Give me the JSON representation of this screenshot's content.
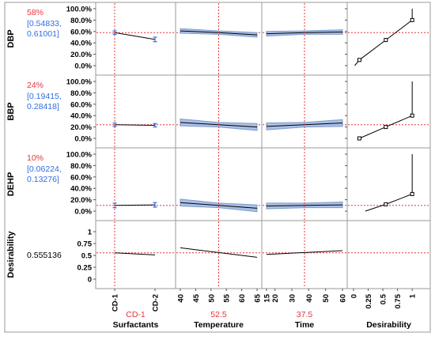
{
  "chart_data": {
    "type": "line",
    "title": "",
    "colors": {
      "response_label": "#000000",
      "current_value": "#e8343a",
      "interval": "#2f6fe0",
      "reference_line": "#e8343a",
      "trace": "#000000",
      "band": "#a9bfe6",
      "band_edge": "#7f9ccc",
      "grid": "#9a9a9a"
    },
    "factors": [
      {
        "name": "Surfactants",
        "current": "CD-1",
        "kind": "categorical",
        "categories": [
          "CD-1",
          "CD-2"
        ],
        "current_value": "CD-1"
      },
      {
        "name": "Temperature",
        "current": "52.5",
        "kind": "continuous",
        "range": [
          40,
          65
        ],
        "ticks": [
          "40",
          "45",
          "50",
          "55",
          "60",
          "65"
        ],
        "current_value": 52.5
      },
      {
        "name": "Time",
        "current": "37.5",
        "kind": "continuous",
        "range": [
          15,
          60
        ],
        "ticks": [
          "15",
          "20",
          "30",
          "40",
          "50",
          "60"
        ],
        "current_value": 37.5
      },
      {
        "name": "Desirability",
        "current": "",
        "kind": "continuous",
        "range": [
          0,
          1.2
        ],
        "ticks": [
          "0",
          "0.25",
          "0.5",
          "0.75",
          "1"
        ],
        "current_value": null
      }
    ],
    "responses": [
      {
        "name": "DBP",
        "value": "58%",
        "ci_line1": "[0.54833,",
        "ci_line2": "0.61001]",
        "y_range": [
          0,
          1
        ],
        "y_ticks": [
          "0.0%",
          "20.0%",
          "40.0%",
          "60.0%",
          "80.0%",
          "100.0%"
        ],
        "current": 0.58,
        "surfactants": [
          {
            "x": "CD-1",
            "y": 0.58,
            "lo": 0.55,
            "hi": 0.61
          },
          {
            "x": "CD-2",
            "y": 0.46,
            "lo": 0.42,
            "hi": 0.5
          }
        ],
        "temperature": [
          {
            "x": 40,
            "y": 0.61,
            "band": 0.04
          },
          {
            "x": 52.5,
            "y": 0.58,
            "band": 0.03
          },
          {
            "x": 65,
            "y": 0.54,
            "band": 0.04
          }
        ],
        "time": [
          {
            "x": 15,
            "y": 0.56,
            "band": 0.04
          },
          {
            "x": 37.5,
            "y": 0.58,
            "band": 0.03
          },
          {
            "x": 60,
            "y": 0.59,
            "band": 0.04
          }
        ],
        "desirability_fn": [
          {
            "x": 0.02,
            "y": 0.0
          },
          {
            "x": 0.1,
            "y": 0.1
          },
          {
            "x": 0.55,
            "y": 0.45
          },
          {
            "x": 1.0,
            "y": 0.8
          },
          {
            "x": 1.0,
            "y": 1.0
          }
        ],
        "desirability_marks": [
          {
            "x": 0.1,
            "y": 0.1
          },
          {
            "x": 0.55,
            "y": 0.45
          },
          {
            "x": 1.0,
            "y": 0.8
          }
        ]
      },
      {
        "name": "BBP",
        "value": "24%",
        "ci_line1": "[0.19415,",
        "ci_line2": "0.28418]",
        "y_range": [
          0,
          1
        ],
        "y_ticks": [
          "0.0%",
          "20.0%",
          "40.0%",
          "60.0%",
          "80.0%",
          "100.0%"
        ],
        "current": 0.24,
        "surfactants": [
          {
            "x": "CD-1",
            "y": 0.24,
            "lo": 0.21,
            "hi": 0.27
          },
          {
            "x": "CD-2",
            "y": 0.23,
            "lo": 0.2,
            "hi": 0.26
          }
        ],
        "temperature": [
          {
            "x": 40,
            "y": 0.28,
            "band": 0.06
          },
          {
            "x": 52.5,
            "y": 0.24,
            "band": 0.04
          },
          {
            "x": 65,
            "y": 0.2,
            "band": 0.06
          }
        ],
        "time": [
          {
            "x": 15,
            "y": 0.21,
            "band": 0.06
          },
          {
            "x": 37.5,
            "y": 0.24,
            "band": 0.04
          },
          {
            "x": 60,
            "y": 0.27,
            "band": 0.06
          }
        ],
        "desirability_fn": [
          {
            "x": 0.1,
            "y": 0.0
          },
          {
            "x": 0.55,
            "y": 0.2
          },
          {
            "x": 1.0,
            "y": 0.4
          },
          {
            "x": 1.0,
            "y": 1.0
          }
        ],
        "desirability_marks": [
          {
            "x": 0.1,
            "y": 0.0
          },
          {
            "x": 0.55,
            "y": 0.2
          },
          {
            "x": 1.0,
            "y": 0.4
          }
        ]
      },
      {
        "name": "DEHP",
        "value": "10%",
        "ci_line1": "[0.06224,",
        "ci_line2": "0.13276]",
        "y_range": [
          0,
          1
        ],
        "y_ticks": [
          "0.0%",
          "20.0%",
          "40.0%",
          "60.0%",
          "80.0%",
          "100.0%"
        ],
        "current": 0.1,
        "surfactants": [
          {
            "x": "CD-1",
            "y": 0.1,
            "lo": 0.06,
            "hi": 0.14
          },
          {
            "x": "CD-2",
            "y": 0.11,
            "lo": 0.07,
            "hi": 0.15
          }
        ],
        "temperature": [
          {
            "x": 40,
            "y": 0.15,
            "band": 0.06
          },
          {
            "x": 52.5,
            "y": 0.1,
            "band": 0.04
          },
          {
            "x": 65,
            "y": 0.05,
            "band": 0.06
          }
        ],
        "time": [
          {
            "x": 15,
            "y": 0.09,
            "band": 0.05
          },
          {
            "x": 37.5,
            "y": 0.1,
            "band": 0.04
          },
          {
            "x": 60,
            "y": 0.11,
            "band": 0.05
          }
        ],
        "desirability_fn": [
          {
            "x": 0.2,
            "y": 0.0
          },
          {
            "x": 0.55,
            "y": 0.12
          },
          {
            "x": 1.0,
            "y": 0.3
          },
          {
            "x": 1.0,
            "y": 1.0
          }
        ],
        "desirability_marks": [
          {
            "x": 0.55,
            "y": 0.12
          },
          {
            "x": 1.0,
            "y": 0.3
          }
        ]
      }
    ],
    "desirability_row": {
      "name": "Desirability",
      "value": "0.555136",
      "y_range": [
        0,
        1.1
      ],
      "y_ticks": [
        "0",
        "0.25",
        "0.5",
        "0.75",
        "1"
      ],
      "current": 0.555136,
      "surfactants": [
        {
          "x": "CD-1",
          "y": 0.555
        },
        {
          "x": "CD-2",
          "y": 0.51
        }
      ],
      "temperature": [
        {
          "x": 40,
          "y": 0.66
        },
        {
          "x": 65,
          "y": 0.46
        }
      ],
      "time": [
        {
          "x": 15,
          "y": 0.52
        },
        {
          "x": 60,
          "y": 0.6
        }
      ]
    }
  }
}
